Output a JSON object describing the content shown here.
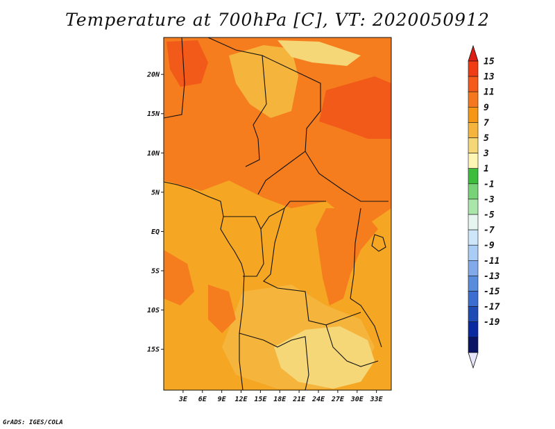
{
  "title": "Temperature at 700hPa [C], VT: 2020050912",
  "credit": "GrADS: IGES/COLA",
  "map": {
    "lon_range": [
      0,
      35.3
    ],
    "lat_range": [
      -20.2,
      24.7
    ],
    "x_ticks": [
      "3E",
      "6E",
      "9E",
      "12E",
      "15E",
      "18E",
      "21E",
      "24E",
      "27E",
      "30E",
      "33E"
    ],
    "x_tick_values": [
      3,
      6,
      9,
      12,
      15,
      18,
      21,
      24,
      27,
      30,
      33
    ],
    "y_ticks": [
      "20N",
      "15N",
      "10N",
      "5N",
      "EQ",
      "5S",
      "10S",
      "15S"
    ],
    "y_tick_values": [
      20,
      15,
      10,
      5,
      0,
      -5,
      -10,
      -15
    ]
  },
  "colorbar": {
    "labels": [
      "15",
      "13",
      "11",
      "9",
      "7",
      "5",
      "3",
      "1",
      "-1",
      "-3",
      "-5",
      "-7",
      "-9",
      "-11",
      "-13",
      "-15",
      "-17",
      "-19"
    ],
    "colors": [
      "#f03c14",
      "#f55a1a",
      "#f5781e",
      "#f59614",
      "#f5b43c",
      "#f5d778",
      "#fff5b4",
      "#3cbe3c",
      "#78d278",
      "#aae6aa",
      "#e6f5f0",
      "#cde6fa",
      "#aacdf5",
      "#82aaeb",
      "#5a8cdc",
      "#3c6ed2",
      "#1e4bb4",
      "#0a28a0",
      "#0a1464"
    ],
    "top_arrow_color": "#dc1e14",
    "bottom_arrow_color": "#e6e6fa"
  }
}
